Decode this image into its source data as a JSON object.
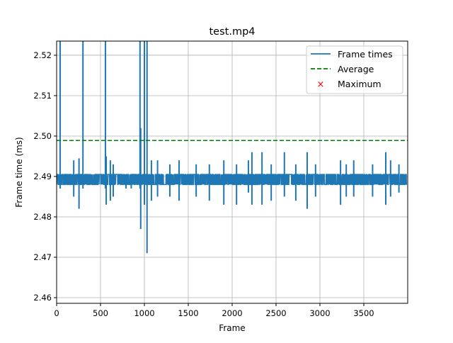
{
  "chart_data": {
    "type": "line",
    "title": "test.mp4",
    "xlabel": "Frame",
    "ylabel": "Frame time (ms)",
    "xlim": [
      0,
      4000
    ],
    "ylim": [
      2.4586,
      2.5235
    ],
    "xticks": [
      0,
      500,
      1000,
      1500,
      2000,
      2500,
      3000,
      3500
    ],
    "xtick_labels": [
      "0",
      "500",
      "1000",
      "1500",
      "2000",
      "2500",
      "3000",
      "3500"
    ],
    "yticks": [
      2.46,
      2.47,
      2.48,
      2.49,
      2.5,
      2.51,
      2.52
    ],
    "ytick_labels": [
      "2.46",
      "2.47",
      "2.48",
      "2.49",
      "2.50",
      "2.51",
      "2.52"
    ],
    "grid": true,
    "legend_position": "top-right",
    "frame_count": 3990,
    "baseline_range": [
      2.488,
      2.4905
    ],
    "series": [
      {
        "name": "Frame times",
        "color": "#1f77b4",
        "style": "solid",
        "spikes_frame_high_low": [
          [
            40,
            2.6,
            2.487
          ],
          [
            195,
            2.494,
            2.485
          ],
          [
            255,
            2.4945,
            2.482
          ],
          [
            300,
            2.6,
            2.487
          ],
          [
            556,
            2.6,
            2.487
          ],
          [
            565,
            2.495,
            2.483
          ],
          [
            612,
            2.494,
            2.484
          ],
          [
            645,
            2.493,
            2.485
          ],
          [
            790,
            2.4905,
            2.487
          ],
          [
            850,
            2.4905,
            2.487
          ],
          [
            950,
            2.6,
            2.487
          ],
          [
            958,
            2.502,
            2.477
          ],
          [
            1000,
            2.6,
            2.483
          ],
          [
            1030,
            2.6,
            2.471
          ],
          [
            1080,
            2.494,
            2.484
          ],
          [
            1150,
            2.494,
            2.485
          ],
          [
            1290,
            2.493,
            2.485
          ],
          [
            1395,
            2.494,
            2.484
          ],
          [
            1590,
            2.493,
            2.485
          ],
          [
            1740,
            2.493,
            2.484
          ],
          [
            1905,
            2.494,
            2.483
          ],
          [
            2050,
            2.493,
            2.483
          ],
          [
            2185,
            2.494,
            2.486
          ],
          [
            2225,
            2.496,
            2.483
          ],
          [
            2340,
            2.496,
            2.483
          ],
          [
            2445,
            2.493,
            2.484
          ],
          [
            2595,
            2.496,
            2.485
          ],
          [
            2725,
            2.493,
            2.484
          ],
          [
            2855,
            2.496,
            2.482
          ],
          [
            2950,
            2.493,
            2.485
          ],
          [
            3235,
            2.494,
            2.483
          ],
          [
            3300,
            2.493,
            2.485
          ],
          [
            3385,
            2.494,
            2.485
          ],
          [
            3600,
            2.493,
            2.485
          ],
          [
            3750,
            2.496,
            2.483
          ],
          [
            3805,
            2.494,
            2.485
          ],
          [
            3900,
            2.493,
            2.486
          ]
        ]
      },
      {
        "name": "Average",
        "color": "#008000",
        "style": "dashed",
        "value": 2.4989
      },
      {
        "name": "Maximum",
        "color": "#ff0000",
        "style": "x-marker"
      }
    ]
  }
}
